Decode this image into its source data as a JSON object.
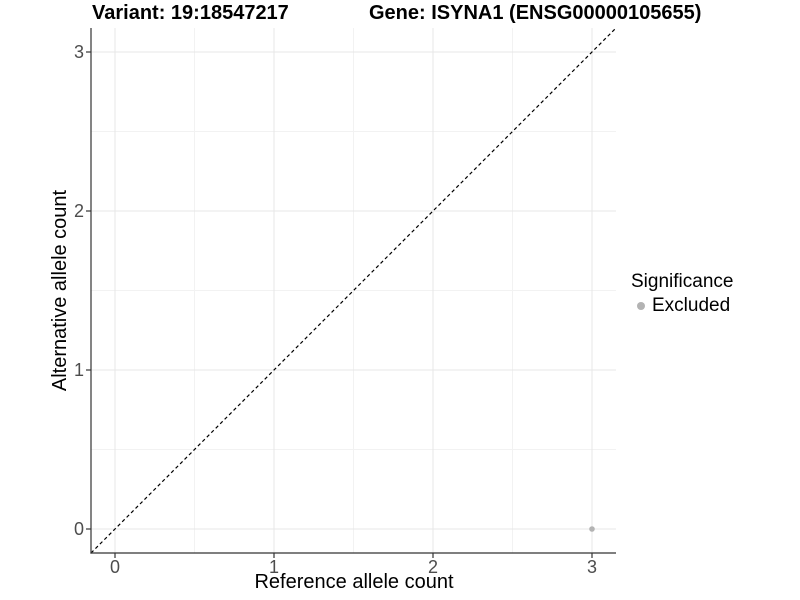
{
  "chart_data": {
    "type": "scatter",
    "titles": {
      "left": "Variant: 19:18547217",
      "right": "Gene: ISYNA1 (ENSG00000105655)"
    },
    "xlabel": "Reference allele count",
    "ylabel": "Alternative allele count",
    "xlim": [
      -0.15,
      3.15
    ],
    "ylim": [
      -0.15,
      3.15
    ],
    "x_ticks": [
      0,
      1,
      2,
      3
    ],
    "y_ticks": [
      0,
      1,
      2,
      3
    ],
    "grid": {
      "major": [
        0,
        1,
        2,
        3
      ],
      "minor": [
        0.5,
        1.5,
        2.5
      ],
      "major_color": "#e7e7e7",
      "minor_color": "#f2f2f2"
    },
    "reference_line": {
      "type": "identity",
      "slope": 1,
      "intercept": 0,
      "style": "dashed",
      "color": "#000000"
    },
    "series": [
      {
        "name": "Excluded",
        "color": "#b3b3b3",
        "point_radius": 2.8,
        "points": [
          [
            3,
            0
          ]
        ]
      }
    ],
    "legend": {
      "title": "Significance",
      "position": "right",
      "items": [
        {
          "label": "Excluded",
          "color": "#b3b3b3"
        }
      ]
    }
  },
  "colors": {
    "background": "#ffffff",
    "axis_line": "#333333",
    "tick_label": "#4d4d4d",
    "text": "#000000"
  }
}
